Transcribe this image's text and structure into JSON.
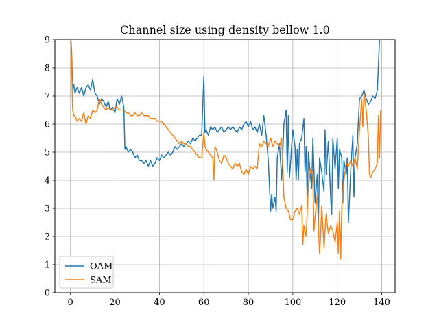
{
  "chart_data": {
    "type": "line",
    "title": "Channel size using density bellow 1.0",
    "xlabel": "",
    "ylabel": "",
    "xlim": [
      -7,
      146
    ],
    "ylim": [
      0,
      9
    ],
    "xticks": [
      0,
      20,
      40,
      60,
      80,
      100,
      120,
      140
    ],
    "yticks": [
      0,
      1,
      2,
      3,
      4,
      5,
      6,
      7,
      8,
      9
    ],
    "grid": true,
    "legend": "lower-left",
    "series": [
      {
        "name": "OAM",
        "color": "#1f77b4",
        "points": [
          [
            0,
            9.3
          ],
          [
            0.5,
            8.6
          ],
          [
            1,
            7.2
          ],
          [
            1.5,
            7.4
          ],
          [
            2,
            7.1
          ],
          [
            3,
            7.3
          ],
          [
            4,
            7.1
          ],
          [
            5,
            7.3
          ],
          [
            6,
            7.0
          ],
          [
            7,
            7.3
          ],
          [
            8,
            7.4
          ],
          [
            9,
            7.2
          ],
          [
            10,
            7.6
          ],
          [
            11,
            7.1
          ],
          [
            12,
            7.0
          ],
          [
            13,
            6.7
          ],
          [
            14,
            6.9
          ],
          [
            15,
            6.8
          ],
          [
            16,
            6.6
          ],
          [
            17,
            6.8
          ],
          [
            18,
            6.5
          ],
          [
            19,
            6.6
          ],
          [
            20,
            6.4
          ],
          [
            21,
            6.9
          ],
          [
            22,
            6.7
          ],
          [
            23,
            7.0
          ],
          [
            24,
            6.6
          ],
          [
            24.5,
            5.1
          ],
          [
            25,
            5.2
          ],
          [
            26,
            5.0
          ],
          [
            27,
            5.1
          ],
          [
            28,
            5.0
          ],
          [
            29,
            4.8
          ],
          [
            30,
            4.9
          ],
          [
            31,
            4.7
          ],
          [
            32,
            4.7
          ],
          [
            33,
            4.6
          ],
          [
            34,
            4.7
          ],
          [
            35,
            4.5
          ],
          [
            36,
            4.7
          ],
          [
            37,
            4.5
          ],
          [
            38,
            4.6
          ],
          [
            39,
            4.8
          ],
          [
            40,
            4.7
          ],
          [
            41,
            4.9
          ],
          [
            42,
            4.8
          ],
          [
            43,
            4.9
          ],
          [
            44,
            5.0
          ],
          [
            45,
            4.9
          ],
          [
            46,
            5.0
          ],
          [
            47,
            5.2
          ],
          [
            48,
            5.1
          ],
          [
            49,
            5.2
          ],
          [
            50,
            5.3
          ],
          [
            51,
            5.2
          ],
          [
            52,
            5.3
          ],
          [
            53,
            5.4
          ],
          [
            54,
            5.3
          ],
          [
            55,
            5.5
          ],
          [
            56,
            5.4
          ],
          [
            57,
            5.5
          ],
          [
            58,
            5.6
          ],
          [
            59,
            5.6
          ],
          [
            60,
            7.7
          ],
          [
            60.5,
            5.7
          ],
          [
            61,
            5.8
          ],
          [
            62,
            5.6
          ],
          [
            63,
            5.9
          ],
          [
            64,
            5.8
          ],
          [
            65,
            5.9
          ],
          [
            66,
            5.7
          ],
          [
            67,
            5.8
          ],
          [
            68,
            5.9
          ],
          [
            69,
            5.7
          ],
          [
            70,
            5.8
          ],
          [
            71,
            5.9
          ],
          [
            72,
            5.8
          ],
          [
            73,
            5.9
          ],
          [
            74,
            5.8
          ],
          [
            75,
            5.7
          ],
          [
            76,
            5.9
          ],
          [
            77,
            5.8
          ],
          [
            78,
            6.0
          ],
          [
            79,
            6.1
          ],
          [
            80,
            5.9
          ],
          [
            81,
            6.1
          ],
          [
            82,
            5.8
          ],
          [
            83,
            5.9
          ],
          [
            84,
            5.7
          ],
          [
            85,
            6.0
          ],
          [
            86,
            5.6
          ],
          [
            87,
            6.3
          ],
          [
            88,
            5.6
          ],
          [
            89,
            4.7
          ],
          [
            90,
            2.9
          ],
          [
            90.5,
            3.5
          ],
          [
            91,
            3.0
          ],
          [
            92,
            3.4
          ],
          [
            92.5,
            2.9
          ],
          [
            93,
            4.8
          ],
          [
            94,
            5.3
          ],
          [
            95,
            4.0
          ],
          [
            96,
            6.0
          ],
          [
            97,
            6.5
          ],
          [
            97.5,
            4.3
          ],
          [
            98,
            6.3
          ],
          [
            98.5,
            4.1
          ],
          [
            99,
            4.6
          ],
          [
            99.5,
            5.3
          ],
          [
            100,
            5.8
          ],
          [
            101,
            5.2
          ],
          [
            101.5,
            4.0
          ],
          [
            102,
            5.1
          ],
          [
            102.5,
            4.0
          ],
          [
            103,
            5.3
          ],
          [
            104,
            5.5
          ],
          [
            105,
            6.2
          ],
          [
            105.5,
            4.3
          ],
          [
            106,
            5.2
          ],
          [
            106.5,
            3.2
          ],
          [
            107,
            5.0
          ],
          [
            108,
            4.1
          ],
          [
            108.5,
            3.7
          ],
          [
            109,
            5.5
          ],
          [
            110,
            3.2
          ],
          [
            111,
            4.2
          ],
          [
            111.5,
            2.4
          ],
          [
            112,
            4.8
          ],
          [
            113,
            4.3
          ],
          [
            114,
            3.6
          ],
          [
            114.5,
            5.8
          ],
          [
            115,
            4.2
          ],
          [
            116,
            5.4
          ],
          [
            117,
            3.4
          ],
          [
            117.5,
            2.8
          ],
          [
            118,
            5.5
          ],
          [
            119,
            4.4
          ],
          [
            120,
            5.5
          ],
          [
            120.5,
            3.7
          ],
          [
            121,
            5.1
          ],
          [
            122,
            4.8
          ],
          [
            122.5,
            3.2
          ],
          [
            123,
            4.7
          ],
          [
            124,
            4.2
          ],
          [
            124.5,
            4.8
          ],
          [
            125,
            2.5
          ],
          [
            126,
            4.3
          ],
          [
            127,
            5.6
          ],
          [
            127.5,
            3.4
          ],
          [
            128,
            4.8
          ],
          [
            129,
            5.3
          ],
          [
            129.5,
            6.1
          ],
          [
            130,
            6.9
          ],
          [
            131,
            7.0
          ],
          [
            132,
            7.2
          ],
          [
            133,
            6.9
          ],
          [
            134,
            6.7
          ],
          [
            135,
            6.8
          ],
          [
            136,
            7.0
          ],
          [
            137,
            6.9
          ],
          [
            138,
            7.2
          ],
          [
            139,
            9.0
          ],
          [
            139.5,
            9.2
          ]
        ]
      },
      {
        "name": "SAM",
        "color": "#ff7f0e",
        "points": [
          [
            0,
            9.3
          ],
          [
            0.5,
            8.3
          ],
          [
            1,
            6.5
          ],
          [
            1.5,
            6.3
          ],
          [
            2,
            6.3
          ],
          [
            3,
            6.1
          ],
          [
            4,
            6.2
          ],
          [
            5,
            6.1
          ],
          [
            6,
            6.4
          ],
          [
            7,
            6.0
          ],
          [
            8,
            6.3
          ],
          [
            9,
            6.2
          ],
          [
            10,
            6.5
          ],
          [
            11,
            6.4
          ],
          [
            12,
            6.5
          ],
          [
            13,
            6.9
          ],
          [
            14,
            6.7
          ],
          [
            15,
            6.6
          ],
          [
            16,
            6.5
          ],
          [
            17,
            6.6
          ],
          [
            18,
            6.5
          ],
          [
            19,
            6.5
          ],
          [
            20,
            6.6
          ],
          [
            21,
            6.6
          ],
          [
            22,
            6.5
          ],
          [
            23,
            6.5
          ],
          [
            24,
            6.5
          ],
          [
            25,
            6.4
          ],
          [
            26,
            6.4
          ],
          [
            27,
            6.3
          ],
          [
            28,
            6.3
          ],
          [
            29,
            6.4
          ],
          [
            30,
            6.3
          ],
          [
            31,
            6.3
          ],
          [
            32,
            6.4
          ],
          [
            33,
            6.3
          ],
          [
            34,
            6.3
          ],
          [
            35,
            6.3
          ],
          [
            36,
            6.2
          ],
          [
            37,
            6.2
          ],
          [
            38,
            6.2
          ],
          [
            39,
            6.1
          ],
          [
            40,
            6.1
          ],
          [
            41,
            6.1
          ],
          [
            42,
            6.0
          ],
          [
            43,
            5.9
          ],
          [
            44,
            5.8
          ],
          [
            45,
            5.7
          ],
          [
            46,
            5.6
          ],
          [
            47,
            5.5
          ],
          [
            48,
            5.4
          ],
          [
            49,
            5.3
          ],
          [
            50,
            5.4
          ],
          [
            51,
            5.3
          ],
          [
            52,
            5.3
          ],
          [
            53,
            5.2
          ],
          [
            54,
            5.2
          ],
          [
            55,
            5.1
          ],
          [
            56,
            5.0
          ],
          [
            57,
            4.9
          ],
          [
            58,
            4.8
          ],
          [
            59,
            4.8
          ],
          [
            60,
            5.7
          ],
          [
            60.5,
            5.2
          ],
          [
            61,
            5.1
          ],
          [
            62,
            5.0
          ],
          [
            63,
            4.9
          ],
          [
            64,
            4.8
          ],
          [
            64.5,
            4.0
          ],
          [
            65,
            5.2
          ],
          [
            66,
            5.0
          ],
          [
            67,
            4.7
          ],
          [
            68,
            4.6
          ],
          [
            69,
            4.9
          ],
          [
            70,
            4.8
          ],
          [
            71,
            4.6
          ],
          [
            72,
            4.5
          ],
          [
            73,
            4.4
          ],
          [
            74,
            4.6
          ],
          [
            75,
            4.5
          ],
          [
            76,
            4.6
          ],
          [
            77,
            4.3
          ],
          [
            78,
            4.2
          ],
          [
            79,
            4.4
          ],
          [
            80,
            4.2
          ],
          [
            81,
            4.5
          ],
          [
            82,
            4.4
          ],
          [
            83,
            4.5
          ],
          [
            84,
            4.4
          ],
          [
            85,
            5.3
          ],
          [
            86,
            5.2
          ],
          [
            87,
            5.4
          ],
          [
            88,
            5.3
          ],
          [
            89,
            5.2
          ],
          [
            90,
            5.5
          ],
          [
            91,
            5.2
          ],
          [
            92,
            5.4
          ],
          [
            93,
            5.3
          ],
          [
            94,
            5.2
          ],
          [
            95,
            5.5
          ],
          [
            96,
            3.4
          ],
          [
            97,
            3.0
          ],
          [
            98,
            2.9
          ],
          [
            99,
            2.6
          ],
          [
            100,
            2.6
          ],
          [
            101,
            2.9
          ],
          [
            102,
            3.0
          ],
          [
            103,
            2.8
          ],
          [
            104,
            3.1
          ],
          [
            104.5,
            1.7
          ],
          [
            105,
            2.4
          ],
          [
            106,
            2.0
          ],
          [
            107,
            3.8
          ],
          [
            108,
            4.4
          ],
          [
            109,
            4.2
          ],
          [
            109.5,
            2.2
          ],
          [
            110,
            2.7
          ],
          [
            111,
            3.5
          ],
          [
            112,
            1.4
          ],
          [
            112.5,
            2.0
          ],
          [
            113,
            3.1
          ],
          [
            114,
            1.6
          ],
          [
            115,
            2.8
          ],
          [
            116,
            2.1
          ],
          [
            117,
            2.4
          ],
          [
            118,
            2.2
          ],
          [
            119,
            1.8
          ],
          [
            120,
            2.5
          ],
          [
            120.5,
            1.4
          ],
          [
            121,
            2.9
          ],
          [
            121.5,
            1.2
          ],
          [
            122,
            3.0
          ],
          [
            123,
            4.0
          ],
          [
            124,
            4.6
          ],
          [
            125,
            4.5
          ],
          [
            126,
            4.7
          ],
          [
            127,
            4.5
          ],
          [
            128,
            4.8
          ],
          [
            129,
            4.4
          ],
          [
            130,
            5.8
          ],
          [
            131,
            6.9
          ],
          [
            131.5,
            5.9
          ],
          [
            132,
            7.1
          ],
          [
            133,
            6.5
          ],
          [
            134,
            5.5
          ],
          [
            134.5,
            4.2
          ],
          [
            135,
            4.1
          ],
          [
            136,
            4.3
          ],
          [
            137,
            4.4
          ],
          [
            138,
            4.6
          ],
          [
            138.5,
            6.3
          ],
          [
            139,
            4.8
          ],
          [
            139.5,
            6.5
          ]
        ]
      }
    ]
  }
}
